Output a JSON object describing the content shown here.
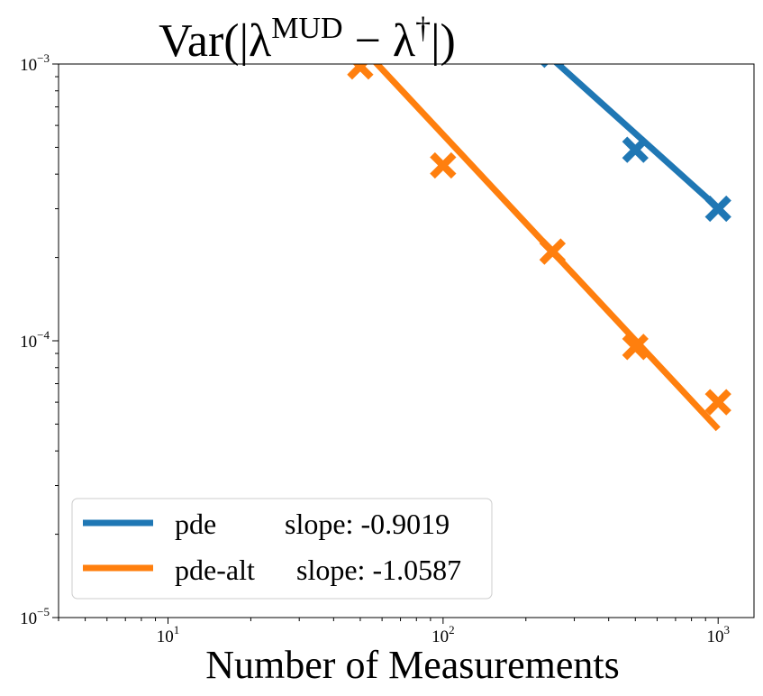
{
  "chart_data": {
    "type": "line",
    "title": "Var(|λ^MUD − λ^†|)",
    "title_parts": {
      "prefix": "Var(|λ",
      "sup1": "MUD",
      "middle": " − λ",
      "sup2": "†",
      "suffix": "|)"
    },
    "xlabel": "Number of Measurements",
    "ylabel": "",
    "x_scale": "log",
    "y_scale": "log",
    "xlim": [
      4,
      1350
    ],
    "ylim": [
      1e-05,
      0.001
    ],
    "x_ticks": [
      {
        "base": "10",
        "exp": "1",
        "value": 10
      },
      {
        "base": "10",
        "exp": "2",
        "value": 100
      },
      {
        "base": "10",
        "exp": "3",
        "value": 1000
      }
    ],
    "y_ticks": [
      {
        "base": "10",
        "exp": "−5",
        "value": 1e-05
      },
      {
        "base": "10",
        "exp": "−4",
        "value": 0.0001
      },
      {
        "base": "10",
        "exp": "−3",
        "value": 0.001
      }
    ],
    "grid": false,
    "legend_position": "lower-left",
    "series": [
      {
        "name": "pde",
        "slope_label": "slope: -0.9019",
        "color": "#1f77b4",
        "points": [
          {
            "x": 250,
            "y": 0.00108
          },
          {
            "x": 500,
            "y": 0.00049
          },
          {
            "x": 1000,
            "y": 0.0003
          }
        ],
        "fit_line": [
          {
            "x": 240,
            "y": 0.00108
          },
          {
            "x": 1000,
            "y": 0.000302
          }
        ]
      },
      {
        "name": "pde-alt",
        "slope_label": "slope: -1.0587",
        "color": "#ff7f0e",
        "points": [
          {
            "x": 50,
            "y": 0.00098
          },
          {
            "x": 100,
            "y": 0.00043
          },
          {
            "x": 250,
            "y": 0.00021
          },
          {
            "x": 500,
            "y": 9.5e-05
          },
          {
            "x": 1000,
            "y": 6e-05
          }
        ],
        "fit_line": [
          {
            "x": 55,
            "y": 0.00105
          },
          {
            "x": 1000,
            "y": 4.8e-05
          }
        ]
      }
    ]
  }
}
